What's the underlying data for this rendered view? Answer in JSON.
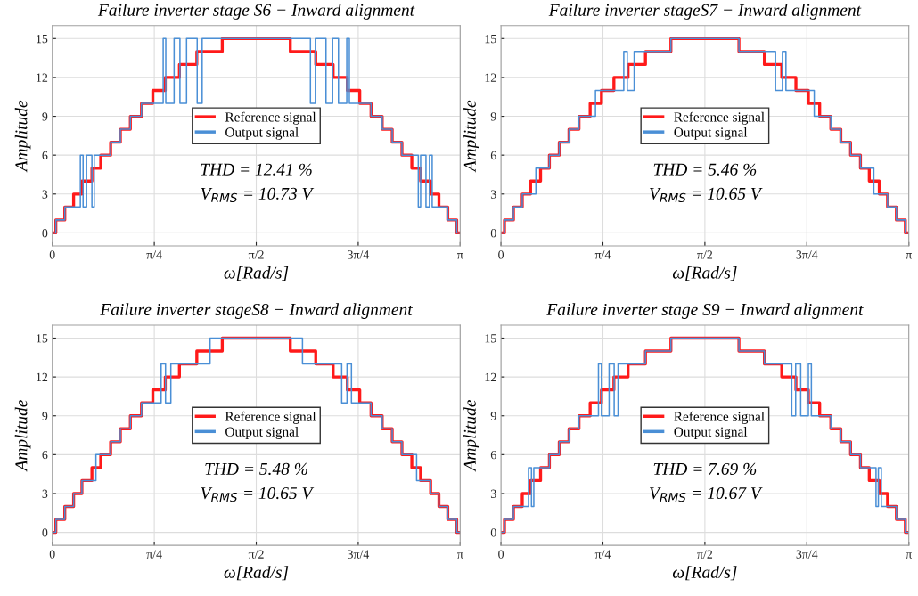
{
  "chart_data": [
    {
      "type": "step",
      "title": "Failure inverter stage S6 − Inward alignment",
      "xlabel": "ω[Rad/s]",
      "ylabel": "Amplitude",
      "xlim": [
        0,
        3.1416
      ],
      "xticks": [
        {
          "value": 0,
          "label": "0"
        },
        {
          "value": 0.7854,
          "label": "π/4"
        },
        {
          "value": 1.5708,
          "label": "π/2"
        },
        {
          "value": 2.3562,
          "label": "3π/4"
        },
        {
          "value": 3.1416,
          "label": "π"
        }
      ],
      "ylim": [
        -1,
        16
      ],
      "yticks": [
        0,
        3,
        6,
        9,
        12,
        15
      ],
      "grid": true,
      "legend": "center",
      "annotations": [
        "THD = 12.41 %",
        "V$_{RMS}$ = 10.73 V"
      ],
      "series": [
        {
          "name": "Reference signal",
          "color": "#ff1a1a",
          "x": [
            0,
            0.027,
            0.096,
            0.164,
            0.228,
            0.305,
            0.373,
            0.449,
            0.524,
            0.601,
            0.687,
            0.774,
            0.87,
            0.979,
            1.113,
            1.309,
            1.833,
            2.029,
            2.163,
            2.272,
            2.368,
            2.455,
            2.541,
            2.618,
            2.693,
            2.769,
            2.837,
            2.914,
            2.978,
            3.046,
            3.115,
            3.1416
          ],
          "values": [
            0,
            1,
            2,
            3,
            4,
            5,
            6,
            7,
            8,
            9,
            10,
            11,
            12,
            13,
            14,
            15,
            14,
            13,
            12,
            11,
            10,
            9,
            8,
            7,
            6,
            5,
            4,
            3,
            2,
            1,
            0,
            0
          ]
        },
        {
          "name": "Output signal",
          "color": "#4a8fd6",
          "x": [
            0,
            0.027,
            0.096,
            0.216,
            0.237,
            0.264,
            0.305,
            0.323,
            0.449,
            0.524,
            0.601,
            0.687,
            0.854,
            0.874,
            0.938,
            0.983,
            1.034,
            1.116,
            1.154,
            1.988,
            2.026,
            2.108,
            2.159,
            2.204,
            2.268,
            2.288,
            2.455,
            2.541,
            2.618,
            2.693,
            2.819,
            2.837,
            2.878,
            2.905,
            2.926,
            3.046,
            3.115,
            3.1416
          ],
          "values": [
            0,
            1,
            2,
            6,
            2,
            6,
            2,
            6,
            7,
            8,
            9,
            10,
            15,
            10,
            15,
            10,
            15,
            10,
            15,
            10,
            15,
            10,
            15,
            10,
            15,
            10,
            9,
            8,
            7,
            6,
            2,
            6,
            2,
            6,
            2,
            1,
            0,
            0
          ]
        }
      ]
    },
    {
      "type": "step",
      "title": "Failure inverter stageS7 − Inward alignment",
      "xlabel": "ω[Rad/s]",
      "ylabel": "Amplitude",
      "xlim": [
        0,
        3.1416
      ],
      "xticks": [
        {
          "value": 0,
          "label": "0"
        },
        {
          "value": 0.7854,
          "label": "π/4"
        },
        {
          "value": 1.5708,
          "label": "π/2"
        },
        {
          "value": 2.3562,
          "label": "3π/4"
        },
        {
          "value": 3.1416,
          "label": "π"
        }
      ],
      "ylim": [
        -1,
        16
      ],
      "yticks": [
        0,
        3,
        6,
        9,
        12,
        15
      ],
      "grid": true,
      "legend": "center",
      "annotations": [
        "THD = 5.46 %",
        "V$_{RMS}$ = 10.65 V"
      ],
      "series": [
        {
          "name": "Reference signal",
          "color": "#ff1a1a",
          "x": [
            0,
            0.027,
            0.096,
            0.164,
            0.228,
            0.305,
            0.373,
            0.449,
            0.524,
            0.601,
            0.687,
            0.774,
            0.87,
            0.979,
            1.113,
            1.309,
            1.833,
            2.029,
            2.163,
            2.272,
            2.368,
            2.455,
            2.541,
            2.618,
            2.693,
            2.769,
            2.837,
            2.914,
            2.978,
            3.046,
            3.115,
            3.1416
          ],
          "values": [
            0,
            1,
            2,
            3,
            4,
            5,
            6,
            7,
            8,
            9,
            10,
            11,
            12,
            13,
            14,
            15,
            14,
            13,
            12,
            11,
            10,
            9,
            8,
            7,
            6,
            5,
            4,
            3,
            2,
            1,
            0,
            0
          ]
        },
        {
          "name": "Output signal",
          "color": "#4a8fd6",
          "x": [
            0,
            0.027,
            0.096,
            0.164,
            0.269,
            0.373,
            0.449,
            0.524,
            0.601,
            0.728,
            0.946,
            0.973,
            1.026,
            1.309,
            1.833,
            2.115,
            2.168,
            2.195,
            2.413,
            2.541,
            2.618,
            2.693,
            2.769,
            2.872,
            2.978,
            3.046,
            3.115,
            3.1416
          ],
          "values": [
            0,
            1,
            2,
            3,
            5,
            6,
            7,
            8,
            9,
            11,
            14,
            11,
            14,
            15,
            14,
            11,
            14,
            11,
            9,
            8,
            7,
            6,
            5,
            3,
            2,
            1,
            0,
            0
          ]
        }
      ]
    },
    {
      "type": "step",
      "title": "Failure inverter stageS8 − Inward alignment",
      "xlabel": "ω[Rad/s]",
      "ylabel": "Amplitude",
      "xlim": [
        0,
        3.1416
      ],
      "xticks": [
        {
          "value": 0,
          "label": "0"
        },
        {
          "value": 0.7854,
          "label": "π/4"
        },
        {
          "value": 1.5708,
          "label": "π/2"
        },
        {
          "value": 2.3562,
          "label": "3π/4"
        },
        {
          "value": 3.1416,
          "label": "π"
        }
      ],
      "ylim": [
        -1,
        16
      ],
      "yticks": [
        0,
        3,
        6,
        9,
        12,
        15
      ],
      "grid": true,
      "legend": "center",
      "annotations": [
        "THD = 5.48 %",
        "V$_{RMS}$ = 10.65 V"
      ],
      "series": [
        {
          "name": "Reference signal",
          "color": "#ff1a1a",
          "x": [
            0,
            0.027,
            0.096,
            0.164,
            0.228,
            0.305,
            0.373,
            0.449,
            0.524,
            0.601,
            0.687,
            0.774,
            0.87,
            0.979,
            1.113,
            1.309,
            1.833,
            2.029,
            2.163,
            2.272,
            2.368,
            2.455,
            2.541,
            2.618,
            2.693,
            2.769,
            2.837,
            2.914,
            2.978,
            3.046,
            3.115,
            3.1416
          ],
          "values": [
            0,
            1,
            2,
            3,
            4,
            5,
            6,
            7,
            8,
            9,
            10,
            11,
            12,
            13,
            14,
            15,
            14,
            13,
            12,
            11,
            10,
            9,
            8,
            7,
            6,
            5,
            4,
            3,
            2,
            1,
            0,
            0
          ]
        },
        {
          "name": "Output signal",
          "color": "#4a8fd6",
          "x": [
            0,
            0.027,
            0.096,
            0.164,
            0.228,
            0.336,
            0.449,
            0.524,
            0.601,
            0.687,
            0.838,
            0.872,
            0.913,
            1.215,
            1.927,
            2.229,
            2.27,
            2.304,
            2.455,
            2.541,
            2.618,
            2.693,
            2.806,
            2.914,
            2.978,
            3.046,
            3.115,
            3.1416
          ],
          "values": [
            0,
            1,
            2,
            3,
            4,
            6,
            7,
            8,
            9,
            10,
            13,
            10,
            13,
            15,
            13,
            10,
            13,
            10,
            9,
            8,
            7,
            6,
            4,
            3,
            2,
            1,
            0,
            0
          ]
        }
      ]
    },
    {
      "type": "step",
      "title": "Failure inverter stage S9 − Inward alignment",
      "xlabel": "ω[Rad/s]",
      "ylabel": "Amplitude",
      "xlim": [
        0,
        3.1416
      ],
      "xticks": [
        {
          "value": 0,
          "label": "0"
        },
        {
          "value": 0.7854,
          "label": "π/4"
        },
        {
          "value": 1.5708,
          "label": "π/2"
        },
        {
          "value": 2.3562,
          "label": "3π/4"
        },
        {
          "value": 3.1416,
          "label": "π"
        }
      ],
      "ylim": [
        -1,
        16
      ],
      "yticks": [
        0,
        3,
        6,
        9,
        12,
        15
      ],
      "grid": true,
      "legend": "center",
      "annotations": [
        "THD = 7.69 %",
        "V$_{RMS}$ = 10.67 V"
      ],
      "series": [
        {
          "name": "Reference signal",
          "color": "#ff1a1a",
          "x": [
            0,
            0.027,
            0.096,
            0.164,
            0.228,
            0.305,
            0.373,
            0.449,
            0.524,
            0.601,
            0.687,
            0.774,
            0.87,
            0.979,
            1.113,
            1.309,
            1.833,
            2.029,
            2.163,
            2.272,
            2.368,
            2.455,
            2.541,
            2.618,
            2.693,
            2.769,
            2.837,
            2.914,
            2.978,
            3.046,
            3.115,
            3.1416
          ],
          "values": [
            0,
            1,
            2,
            3,
            4,
            5,
            6,
            7,
            8,
            9,
            10,
            11,
            12,
            13,
            14,
            15,
            14,
            13,
            12,
            11,
            10,
            9,
            8,
            7,
            6,
            5,
            4,
            3,
            2,
            1,
            0,
            0
          ]
        },
        {
          "name": "Output signal",
          "color": "#4a8fd6",
          "x": [
            0,
            0.027,
            0.096,
            0.212,
            0.235,
            0.253,
            0.373,
            0.449,
            0.524,
            0.601,
            0.751,
            0.774,
            0.833,
            0.872,
            0.902,
            1.113,
            1.309,
            1.833,
            2.029,
            2.24,
            2.27,
            2.309,
            2.368,
            2.391,
            2.541,
            2.618,
            2.693,
            2.769,
            2.889,
            2.907,
            2.93,
            3.046,
            3.115,
            3.1416
          ],
          "values": [
            0,
            1,
            2,
            5,
            2,
            5,
            6,
            7,
            8,
            9,
            13,
            9,
            13,
            9,
            13,
            14,
            15,
            14,
            13,
            9,
            13,
            9,
            13,
            9,
            8,
            7,
            6,
            5,
            2,
            5,
            2,
            1,
            0,
            0
          ]
        }
      ]
    }
  ]
}
